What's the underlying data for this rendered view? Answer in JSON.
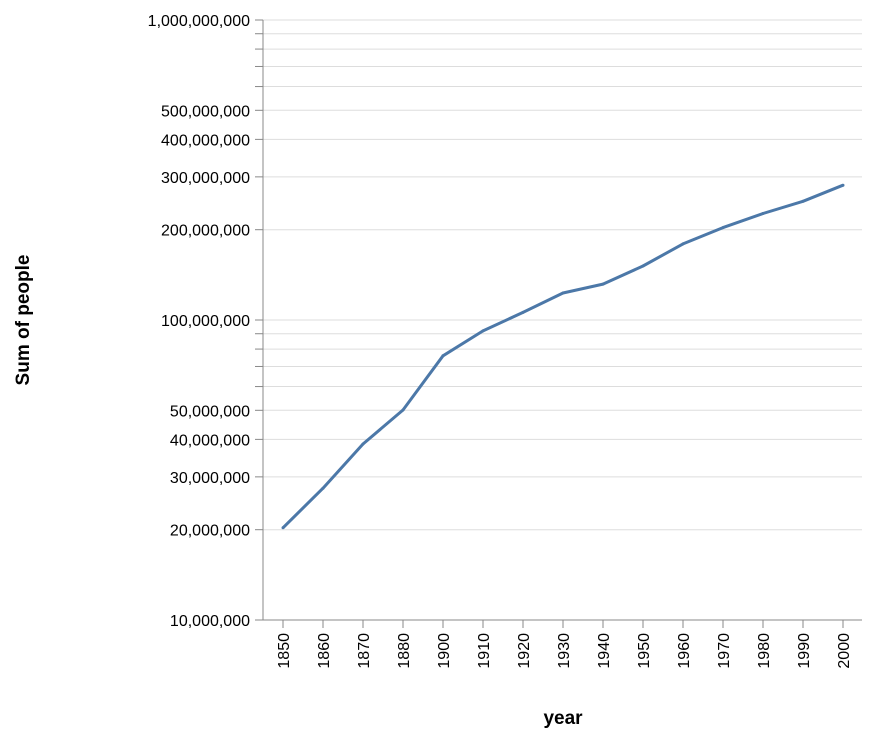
{
  "chart_data": {
    "type": "line",
    "xlabel": "year",
    "ylabel": "Sum of people",
    "y_scale": "log",
    "ylim": [
      10000000,
      1000000000
    ],
    "grid": true,
    "line_color": "#4c78a8",
    "x_tick_labels": [
      "1850",
      "1860",
      "1870",
      "1880",
      "1900",
      "1910",
      "1920",
      "1930",
      "1940",
      "1950",
      "1960",
      "1970",
      "1980",
      "1990",
      "2000"
    ],
    "y_tick_labels": [
      {
        "value": 10000000,
        "label": "10,000,000"
      },
      {
        "value": 20000000,
        "label": "20,000,000"
      },
      {
        "value": 30000000,
        "label": "30,000,000"
      },
      {
        "value": 40000000,
        "label": "40,000,000"
      },
      {
        "value": 50000000,
        "label": "50,000,000"
      },
      {
        "value": 100000000,
        "label": "100,000,000"
      },
      {
        "value": 200000000,
        "label": "200,000,000"
      },
      {
        "value": 300000000,
        "label": "300,000,000"
      },
      {
        "value": 400000000,
        "label": "400,000,000"
      },
      {
        "value": 500000000,
        "label": "500,000,000"
      },
      {
        "value": 1000000000,
        "label": "1,000,000,000"
      }
    ],
    "y_minor_ticks": [
      60000000,
      70000000,
      80000000,
      90000000,
      600000000,
      700000000,
      800000000,
      900000000
    ],
    "series": [
      {
        "x": [
          "1850",
          "1860",
          "1870",
          "1880",
          "1900",
          "1910",
          "1920",
          "1930",
          "1940",
          "1950",
          "1960",
          "1970",
          "1980",
          "1990",
          "2000"
        ],
        "values": [
          20300000,
          27500000,
          38600000,
          50100000,
          76000000,
          92000000,
          106000000,
          123000000,
          131700000,
          151300000,
          179300000,
          203200000,
          226500000,
          248700000,
          281400000
        ]
      }
    ]
  }
}
